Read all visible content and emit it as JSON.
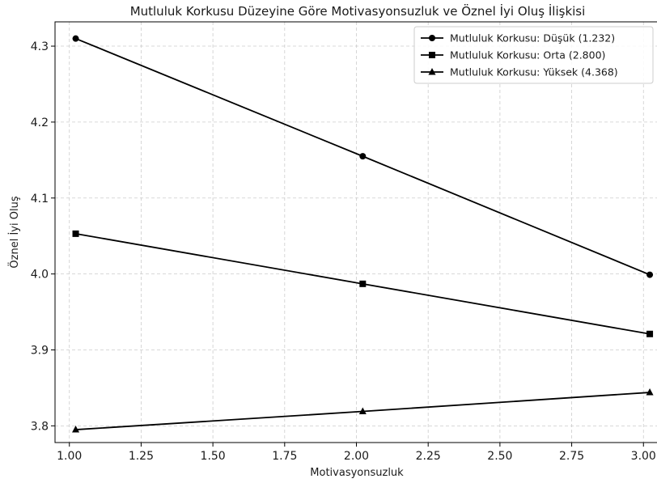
{
  "chart_data": {
    "type": "line",
    "title": "Mutluluk Korkusu Düzeyine Göre Motivasyonsuzluk ve Öznel İyi Oluş İlişkisi",
    "xlabel": "Motivasyonsuzluk",
    "ylabel": "Öznel İyi Oluş",
    "xlim": [
      0.95,
      3.05
    ],
    "ylim": [
      3.778,
      4.332
    ],
    "xticks": [
      1.0,
      1.25,
      1.5,
      1.75,
      2.0,
      2.25,
      2.5,
      2.75,
      3.0
    ],
    "xtick_labels": [
      "1.00",
      "1.25",
      "1.50",
      "1.75",
      "2.00",
      "2.25",
      "2.50",
      "2.75",
      "3.00"
    ],
    "yticks": [
      3.8,
      3.9,
      4.0,
      4.1,
      4.2,
      4.3
    ],
    "ytick_labels": [
      "3.8",
      "3.9",
      "4.0",
      "4.1",
      "4.2",
      "4.3"
    ],
    "grid": true,
    "legend_position": "top-right",
    "series": [
      {
        "name": "Mutluluk Korkusu: Düşük (1.232)",
        "marker": "circle",
        "color": "#000000",
        "x": [
          1.022,
          2.022,
          3.022
        ],
        "y": [
          4.31,
          4.155,
          3.999
        ]
      },
      {
        "name": "Mutluluk Korkusu: Orta (2.800)",
        "marker": "square",
        "color": "#000000",
        "x": [
          1.022,
          2.022,
          3.022
        ],
        "y": [
          4.053,
          3.987,
          3.921
        ]
      },
      {
        "name": "Mutluluk Korkusu: Yüksek (4.368)",
        "marker": "triangle",
        "color": "#000000",
        "x": [
          1.022,
          2.022,
          3.022
        ],
        "y": [
          3.795,
          3.819,
          3.844
        ]
      }
    ]
  }
}
